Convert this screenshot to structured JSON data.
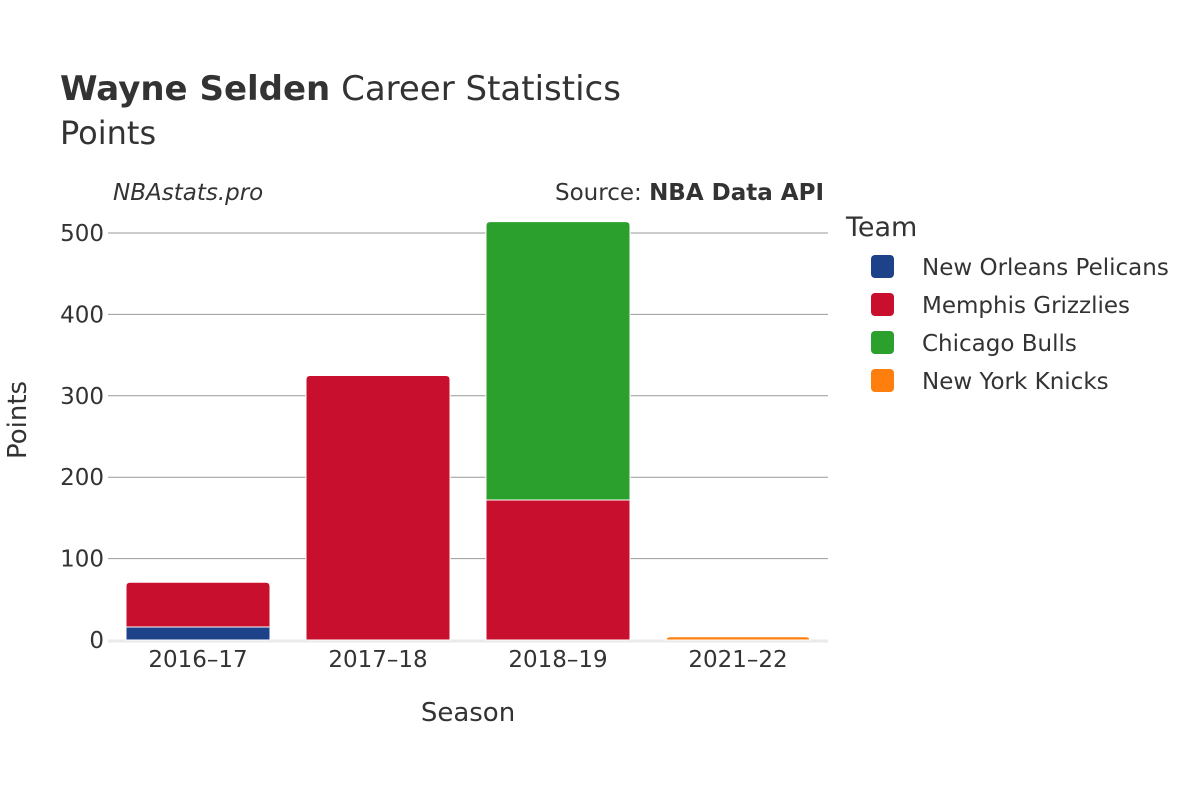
{
  "title": {
    "bold": "Wayne Selden",
    "rest": " Career Statistics",
    "subtitle": "Points"
  },
  "watermark": "NBAstats.pro",
  "source": {
    "prefix": "Source: ",
    "name": "NBA Data API"
  },
  "legend": {
    "title": "Team"
  },
  "chart_data": {
    "type": "bar",
    "stacked": true,
    "categories": [
      "2016–17",
      "2017–18",
      "2018–19",
      "2021–22"
    ],
    "xlabel": "Season",
    "ylabel": "Points",
    "ylim": [
      0,
      530
    ],
    "yticks": [
      0,
      100,
      200,
      300,
      400,
      500
    ],
    "grid": true,
    "legend_position": "right",
    "series": [
      {
        "name": "New Orleans Pelicans",
        "color": "#1d428a",
        "values": [
          16,
          0,
          0,
          0
        ]
      },
      {
        "name": "Memphis Grizzlies",
        "color": "#c8102e",
        "values": [
          55,
          325,
          172,
          0
        ]
      },
      {
        "name": "Chicago Bulls",
        "color": "#2ca02c",
        "values": [
          0,
          0,
          342,
          0
        ]
      },
      {
        "name": "New York Knicks",
        "color": "#ff7f0e",
        "values": [
          0,
          0,
          0,
          4
        ]
      }
    ]
  }
}
